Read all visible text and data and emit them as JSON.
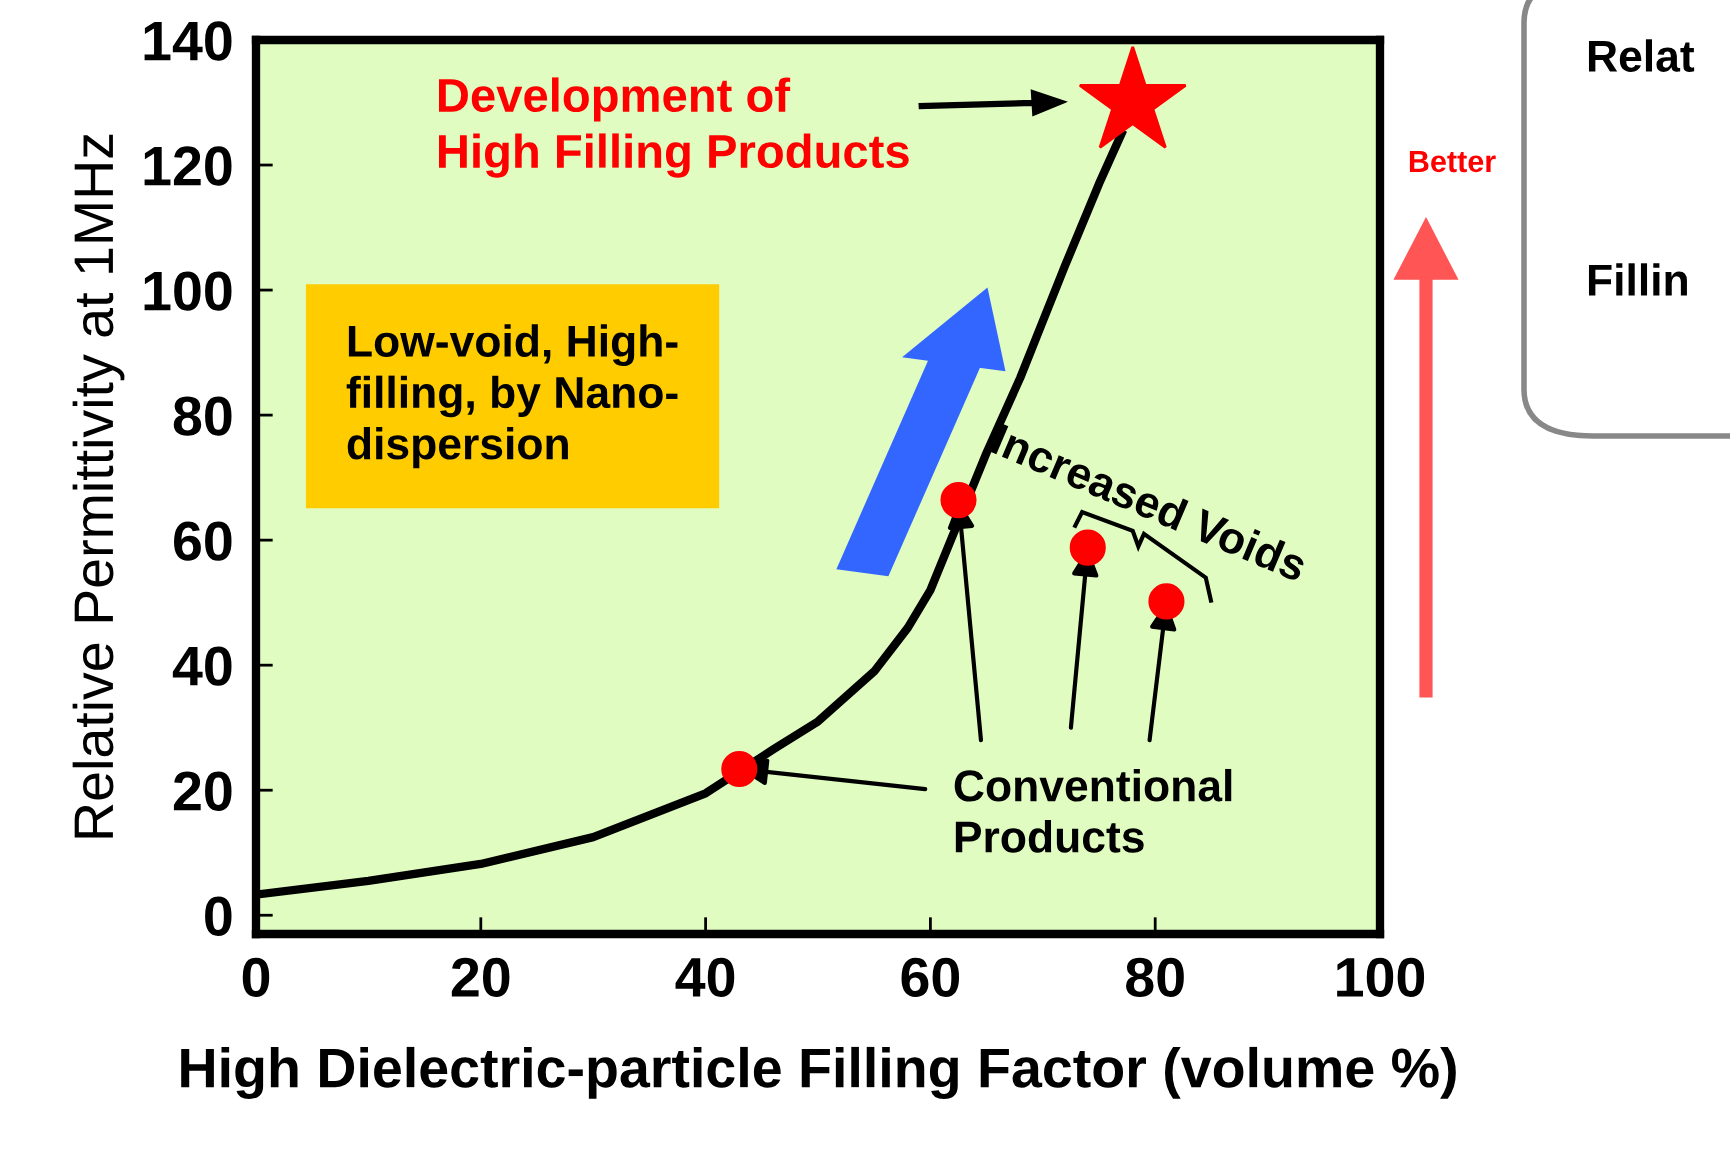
{
  "chart_data": {
    "type": "scatter",
    "xlabel": "High Dielectric-particle Filling Factor (volume %)",
    "ylabel": "Relative Permittivity at 1MHz",
    "xlim": [
      0,
      100
    ],
    "ylim": [
      -3,
      140
    ],
    "xticks": [
      0,
      20,
      40,
      60,
      80,
      100
    ],
    "yticks": [
      0,
      20,
      40,
      60,
      80,
      100,
      120,
      140
    ],
    "grid": false,
    "series": [
      {
        "type": "line",
        "color": "#000000",
        "marker": "none",
        "line_style": "solid",
        "x": [
          0,
          10,
          20,
          30,
          40,
          46,
          50,
          55,
          58,
          60,
          62.5,
          65,
          68,
          70,
          72,
          75,
          77
        ],
        "values": [
          3.3,
          5.5,
          8.2,
          12.5,
          19.5,
          26.5,
          31,
          39,
          46,
          52,
          63,
          74,
          86,
          95,
          104,
          117,
          125
        ]
      },
      {
        "color": "#ff0000",
        "marker": "circle",
        "x": [
          43,
          62.5,
          74,
          81
        ],
        "values": [
          23.4,
          66.4,
          58.8,
          50.2
        ]
      },
      {
        "color": "#ff0000",
        "marker": "star",
        "x": [
          78
        ],
        "values": [
          130
        ]
      }
    ],
    "annotations": [
      "Development of\nHigh Filling Products",
      "Low-void, High-\nfilling, by Nano-\ndispersion",
      "Increased Voids",
      {
        "text": "Conventional\nProducts",
        "x": 43,
        "y": 23.4
      },
      "Better",
      "Relat",
      "Fillin"
    ]
  }
}
